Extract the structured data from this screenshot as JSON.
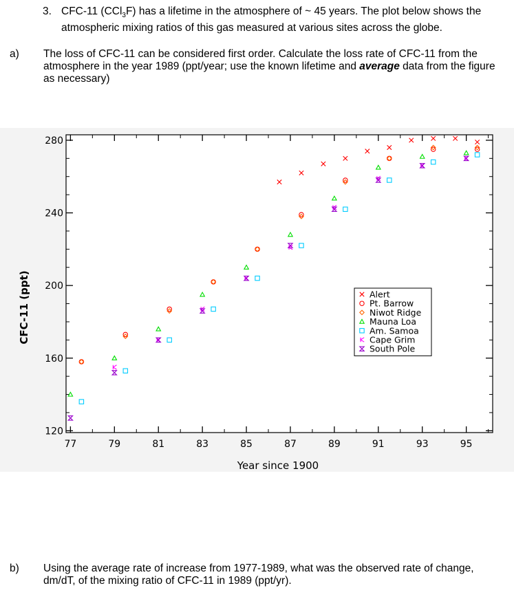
{
  "question3": {
    "number": "3.",
    "text_before": "CFC-11 (CCl",
    "sub1": "3",
    "text_mid": "F) has a lifetime in the atmosphere of ~ 45 years.  The plot below shows the atmospheric mixing ratios of this gas measured at various sites across the globe."
  },
  "part_a": {
    "label": "a)",
    "text_before": "The loss of CFC-11 can be considered first order.  Calculate the loss rate of CFC-11 from the atmosphere in the year 1989 (ppt/year; use the known lifetime and ",
    "emphasis": "average",
    "text_after": " data from the figure as necessary)"
  },
  "part_b": {
    "label": "b)",
    "text": "Using the average rate of increase from 1977-1989, what was the observed rate of change, dm/dT, of the mixing ratio of CFC-11 in 1989  (ppt/yr)."
  },
  "colors": {
    "Alert": "#ff0000",
    "Pt. Barrow": "#ff0000",
    "Niwot Ridge": "#ff6600",
    "Mauna Loa": "#00dd00",
    "Am. Samoa": "#00ccff",
    "Cape Grim": "#ff00ff",
    "South Pole": "#9900cc"
  },
  "chart_data": {
    "type": "scatter",
    "xlabel": "Year since 1900",
    "ylabel": "CFC-11 (ppt)",
    "xlim": [
      76.8,
      96.2
    ],
    "ylim": [
      119,
      283
    ],
    "xticks": [
      "77",
      "79",
      "81",
      "83",
      "85",
      "87",
      "89",
      "91",
      "93",
      "95"
    ],
    "yticks": [
      "120",
      "160",
      "200",
      "240",
      "280"
    ],
    "legend_position": "right-center",
    "grid": false,
    "series": [
      {
        "name": "Alert",
        "marker": "x",
        "x": [
          86.5,
          87.5,
          88.5,
          89.5,
          90.5,
          91.5,
          92.5,
          93.5,
          94.5,
          95.5
        ],
        "y": [
          257,
          262,
          267,
          270,
          274,
          276,
          280,
          281,
          281,
          279
        ]
      },
      {
        "name": "Pt. Barrow",
        "marker": "o",
        "x": [
          77.5,
          79.5,
          81.5,
          83.5,
          85.5,
          87.5,
          89.5,
          91.5,
          93.5,
          95.5
        ],
        "y": [
          158,
          173,
          187,
          202,
          220,
          239,
          258,
          270,
          275,
          275
        ]
      },
      {
        "name": "Niwot Ridge",
        "marker": "diamond",
        "x": [
          77.5,
          79.5,
          81.5,
          83.5,
          85.5,
          87.5,
          89.5,
          91.5,
          93.5,
          95.5
        ],
        "y": [
          158,
          172,
          186,
          202,
          220,
          238,
          257,
          270,
          276,
          276
        ]
      },
      {
        "name": "Mauna Loa",
        "marker": "triangle",
        "x": [
          77.0,
          79.0,
          81.0,
          83.0,
          85.0,
          87.0,
          89.0,
          91.0,
          93.0,
          95.0
        ],
        "y": [
          140,
          160,
          176,
          195,
          210,
          228,
          248,
          265,
          271,
          273
        ]
      },
      {
        "name": "Am. Samoa",
        "marker": "square",
        "x": [
          77.5,
          79.5,
          81.5,
          83.5,
          85.5,
          87.5,
          89.5,
          91.5,
          93.5,
          95.5
        ],
        "y": [
          136,
          153,
          170,
          187,
          204,
          222,
          242,
          258,
          268,
          272
        ]
      },
      {
        "name": "Cape Grim",
        "marker": "k",
        "x": [
          79.0,
          81.0,
          83.0,
          85.0,
          87.0,
          89.0,
          91.0,
          93.0,
          95.0
        ],
        "y": [
          155,
          170,
          187,
          204,
          221,
          243,
          259,
          266,
          270
        ]
      },
      {
        "name": "South Pole",
        "marker": "hourglass",
        "x": [
          77.0,
          79.0,
          81.0,
          83.0,
          85.0,
          87.0,
          89.0,
          91.0,
          93.0,
          95.0
        ],
        "y": [
          127,
          152,
          170,
          186,
          204,
          222,
          242,
          258,
          266,
          270
        ]
      }
    ]
  }
}
